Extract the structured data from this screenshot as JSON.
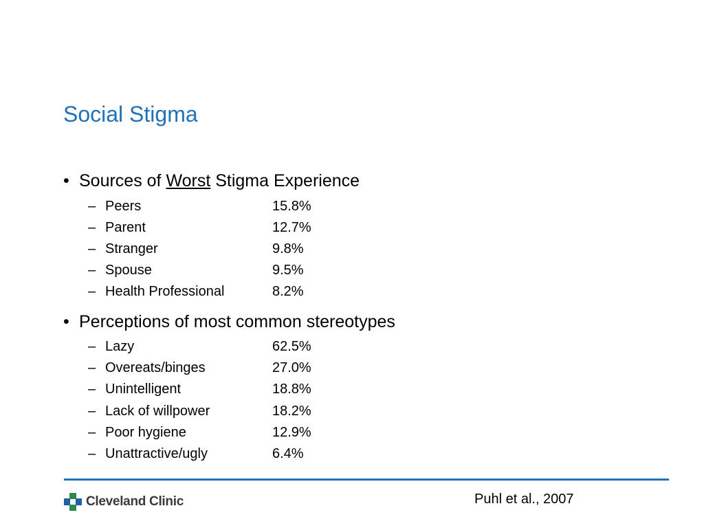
{
  "slide": {
    "title": "Social Stigma",
    "section1": {
      "pre": "Sources of ",
      "emph": "Worst",
      "post": " Stigma Experience",
      "items": [
        {
          "label": "Peers",
          "value": "15.8%"
        },
        {
          "label": "Parent",
          "value": "12.7%"
        },
        {
          "label": "Stranger",
          "value": "9.8%"
        },
        {
          "label": "Spouse",
          "value": "9.5%"
        },
        {
          "label": "Health Professional",
          "value": "8.2%"
        }
      ]
    },
    "section2": {
      "heading": "Perceptions of most common stereotypes",
      "items": [
        {
          "label": "Lazy",
          "value": "62.5%"
        },
        {
          "label": "Overeats/binges",
          "value": "27.0%"
        },
        {
          "label": "Unintelligent",
          "value": "18.8%"
        },
        {
          "label": "Lack of willpower",
          "value": "18.2%"
        },
        {
          "label": "Poor hygiene",
          "value": "12.9%"
        },
        {
          "label": "Unattractive/ugly",
          "value": "6.4%"
        }
      ]
    },
    "bullet_glyph": "•",
    "dash_glyph": "–",
    "citation": "Puhl et al., 2007",
    "logo": {
      "text": "Cleveland Clinic",
      "icon": "cleveland-clinic-cross-icon"
    },
    "colors": {
      "title": "#1f72b8",
      "rule": "#1f72b8",
      "logo_green": "#2d8a4b",
      "logo_blue": "#1f5fa8"
    }
  }
}
